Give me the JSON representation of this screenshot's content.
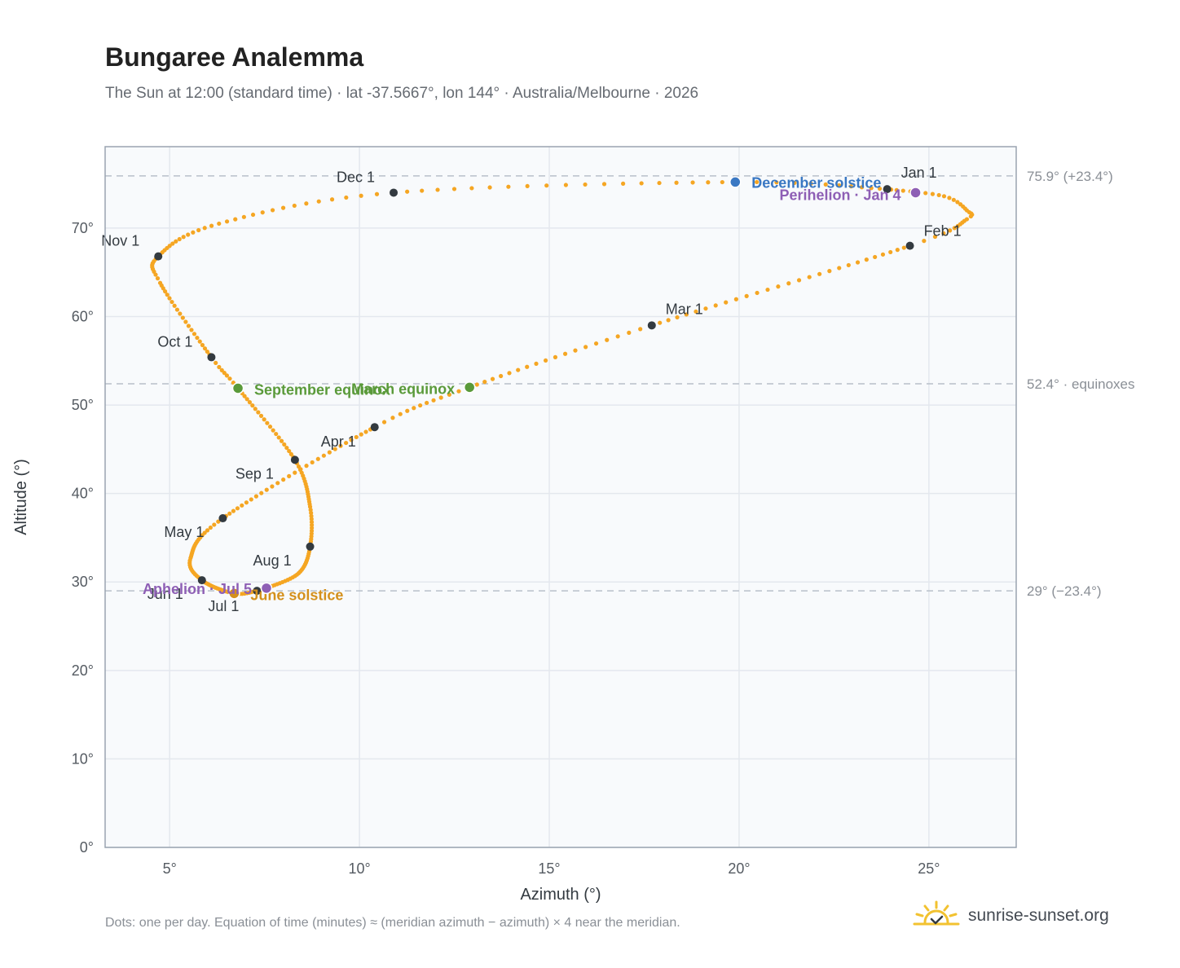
{
  "header": {
    "title": "Bungaree Analemma",
    "subtitle": "The Sun at 12:00 (standard time) · lat -37.5667°, lon 144° · Australia/Melbourne · 2026"
  },
  "footer": {
    "note": "Dots: one per day. Equation of time (minutes) ≈ (meridian azimuth − azimuth) × 4 near the meridian.",
    "brand": "sunrise-sunset.org",
    "brand_icon": "sun-checkmark-icon"
  },
  "chart_data": {
    "type": "scatter",
    "xlabel": "Azimuth (°)",
    "ylabel": "Altitude (°)",
    "xlim": [
      3.3,
      27.3
    ],
    "ylim": [
      0,
      79.2
    ],
    "x_ticks": [
      5,
      10,
      15,
      20,
      25
    ],
    "x_tick_labels": [
      "5°",
      "10°",
      "15°",
      "20°",
      "25°"
    ],
    "y_ticks": [
      0,
      10,
      20,
      30,
      40,
      50,
      60,
      70
    ],
    "y_tick_labels": [
      "0°",
      "10°",
      "20°",
      "30°",
      "40°",
      "50°",
      "60°",
      "70°"
    ],
    "grid": true,
    "colors": {
      "daily_dots": "#f5a623",
      "month_markers": "#333a40",
      "solstice_december": "#3a78c3",
      "solstice_june": "#d4901c",
      "equinox": "#5a9a3a",
      "apsis": "#8e5fb5",
      "reference_lines": "#b8c0ca",
      "plot_background": "#f8fafc",
      "plot_border": "#9aa4b0"
    },
    "reference_lines": [
      {
        "y": 75.9,
        "label": "75.9° (+23.4°)"
      },
      {
        "y": 52.4,
        "label": "52.4° · equinoxes"
      },
      {
        "y": 29.0,
        "label": "29° (−23.4°)"
      }
    ],
    "month_markers": [
      {
        "label": "Jan 1",
        "x": 23.9,
        "y": 74.4
      },
      {
        "label": "Feb 1",
        "x": 24.5,
        "y": 68.0
      },
      {
        "label": "Mar 1",
        "x": 17.7,
        "y": 59.0
      },
      {
        "label": "Apr 1",
        "x": 10.4,
        "y": 47.5
      },
      {
        "label": "May 1",
        "x": 6.4,
        "y": 37.2
      },
      {
        "label": "Jun 1",
        "x": 5.85,
        "y": 30.2
      },
      {
        "label": "Jul 1",
        "x": 7.3,
        "y": 29.0
      },
      {
        "label": "Aug 1",
        "x": 8.7,
        "y": 34.0
      },
      {
        "label": "Sep 1",
        "x": 8.3,
        "y": 43.8
      },
      {
        "label": "Oct 1",
        "x": 6.1,
        "y": 55.4
      },
      {
        "label": "Nov 1",
        "x": 4.7,
        "y": 66.8
      },
      {
        "label": "Dec 1",
        "x": 10.9,
        "y": 74.0
      }
    ],
    "events": [
      {
        "label": "December solstice",
        "x": 19.9,
        "y": 75.2,
        "kind": "solstice_december"
      },
      {
        "label": "Perihelion · Jan 4",
        "x": 24.65,
        "y": 74.0,
        "kind": "apsis"
      },
      {
        "label": "March equinox",
        "x": 12.9,
        "y": 52.0,
        "kind": "equinox"
      },
      {
        "label": "September equinox",
        "x": 6.8,
        "y": 51.9,
        "kind": "equinox"
      },
      {
        "label": "June solstice",
        "x": 6.7,
        "y": 28.7,
        "kind": "solstice_june"
      },
      {
        "label": "Aphelion · Jul 5",
        "x": 7.55,
        "y": 29.3,
        "kind": "apsis"
      }
    ],
    "path_anchors": [
      [
        1,
        23.9,
        74.4
      ],
      [
        10,
        25.4,
        73.6
      ],
      [
        17,
        26.0,
        72.0
      ],
      [
        22,
        26.0,
        71.0
      ],
      [
        32,
        24.5,
        68.0
      ],
      [
        60,
        17.7,
        59.0
      ],
      [
        79,
        12.9,
        52.0
      ],
      [
        91,
        10.4,
        47.5
      ],
      [
        121,
        6.4,
        37.2
      ],
      [
        140,
        5.55,
        32.7
      ],
      [
        152,
        5.85,
        30.2
      ],
      [
        172,
        6.7,
        28.7
      ],
      [
        182,
        7.3,
        29.0
      ],
      [
        186,
        7.55,
        29.3
      ],
      [
        200,
        8.4,
        31.0
      ],
      [
        213,
        8.7,
        34.0
      ],
      [
        227,
        8.7,
        38.5
      ],
      [
        244,
        8.3,
        43.8
      ],
      [
        266,
        6.8,
        51.9
      ],
      [
        274,
        6.1,
        55.4
      ],
      [
        295,
        4.75,
        63.8
      ],
      [
        305,
        4.7,
        66.8
      ],
      [
        320,
        6.3,
        70.5
      ],
      [
        335,
        10.9,
        74.0
      ],
      [
        355,
        19.9,
        75.2
      ],
      [
        366,
        23.9,
        74.4
      ]
    ]
  }
}
